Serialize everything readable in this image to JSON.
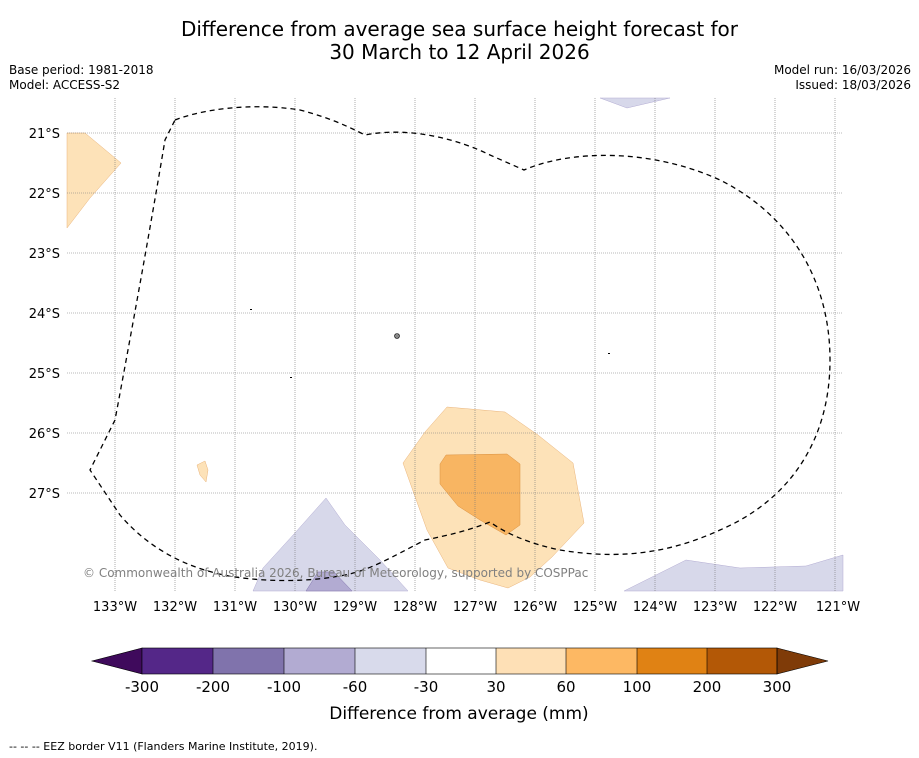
{
  "title": {
    "line1": "Difference from average sea surface height forecast for",
    "line2": "30 March to 12 April 2026"
  },
  "meta": {
    "base_period": "Base period: 1981-2018",
    "model": "Model: ACCESS-S2",
    "model_run": "Model run: 16/03/2026",
    "issued": "Issued: 18/03/2026"
  },
  "map": {
    "lat_labels": [
      "21°S",
      "22°S",
      "23°S",
      "24°S",
      "25°S",
      "26°S",
      "27°S"
    ],
    "lon_labels": [
      "133°W",
      "132°W",
      "131°W",
      "130°W",
      "129°W",
      "128°W",
      "127°W",
      "126°W",
      "125°W",
      "124°W",
      "123°W",
      "122°W",
      "121°W"
    ],
    "copyright": "© Commonwealth of Australia 2026, Bureau of Meteorology, supported by COSPPac",
    "colors": {
      "light_orange": "#fde2b8",
      "orange": "#f8b562",
      "light_purple": "#d7d8ea"
    }
  },
  "colorbar": {
    "title": "Difference from average (mm)",
    "tick_labels": [
      "-300",
      "-200",
      "-100",
      "-60",
      "-30",
      "30",
      "60",
      "100",
      "200",
      "300"
    ],
    "colors": [
      "#3f0a5c",
      "#542788",
      "#8073ac",
      "#b2abd2",
      "#d8daeb",
      "#ffffff",
      "#fee0b6",
      "#fdb863",
      "#e08214",
      "#b35806",
      "#7f3b08"
    ]
  },
  "footer": {
    "legend": "--  --  -- EEZ border V11 (Flanders Marine Institute, 2019)."
  }
}
